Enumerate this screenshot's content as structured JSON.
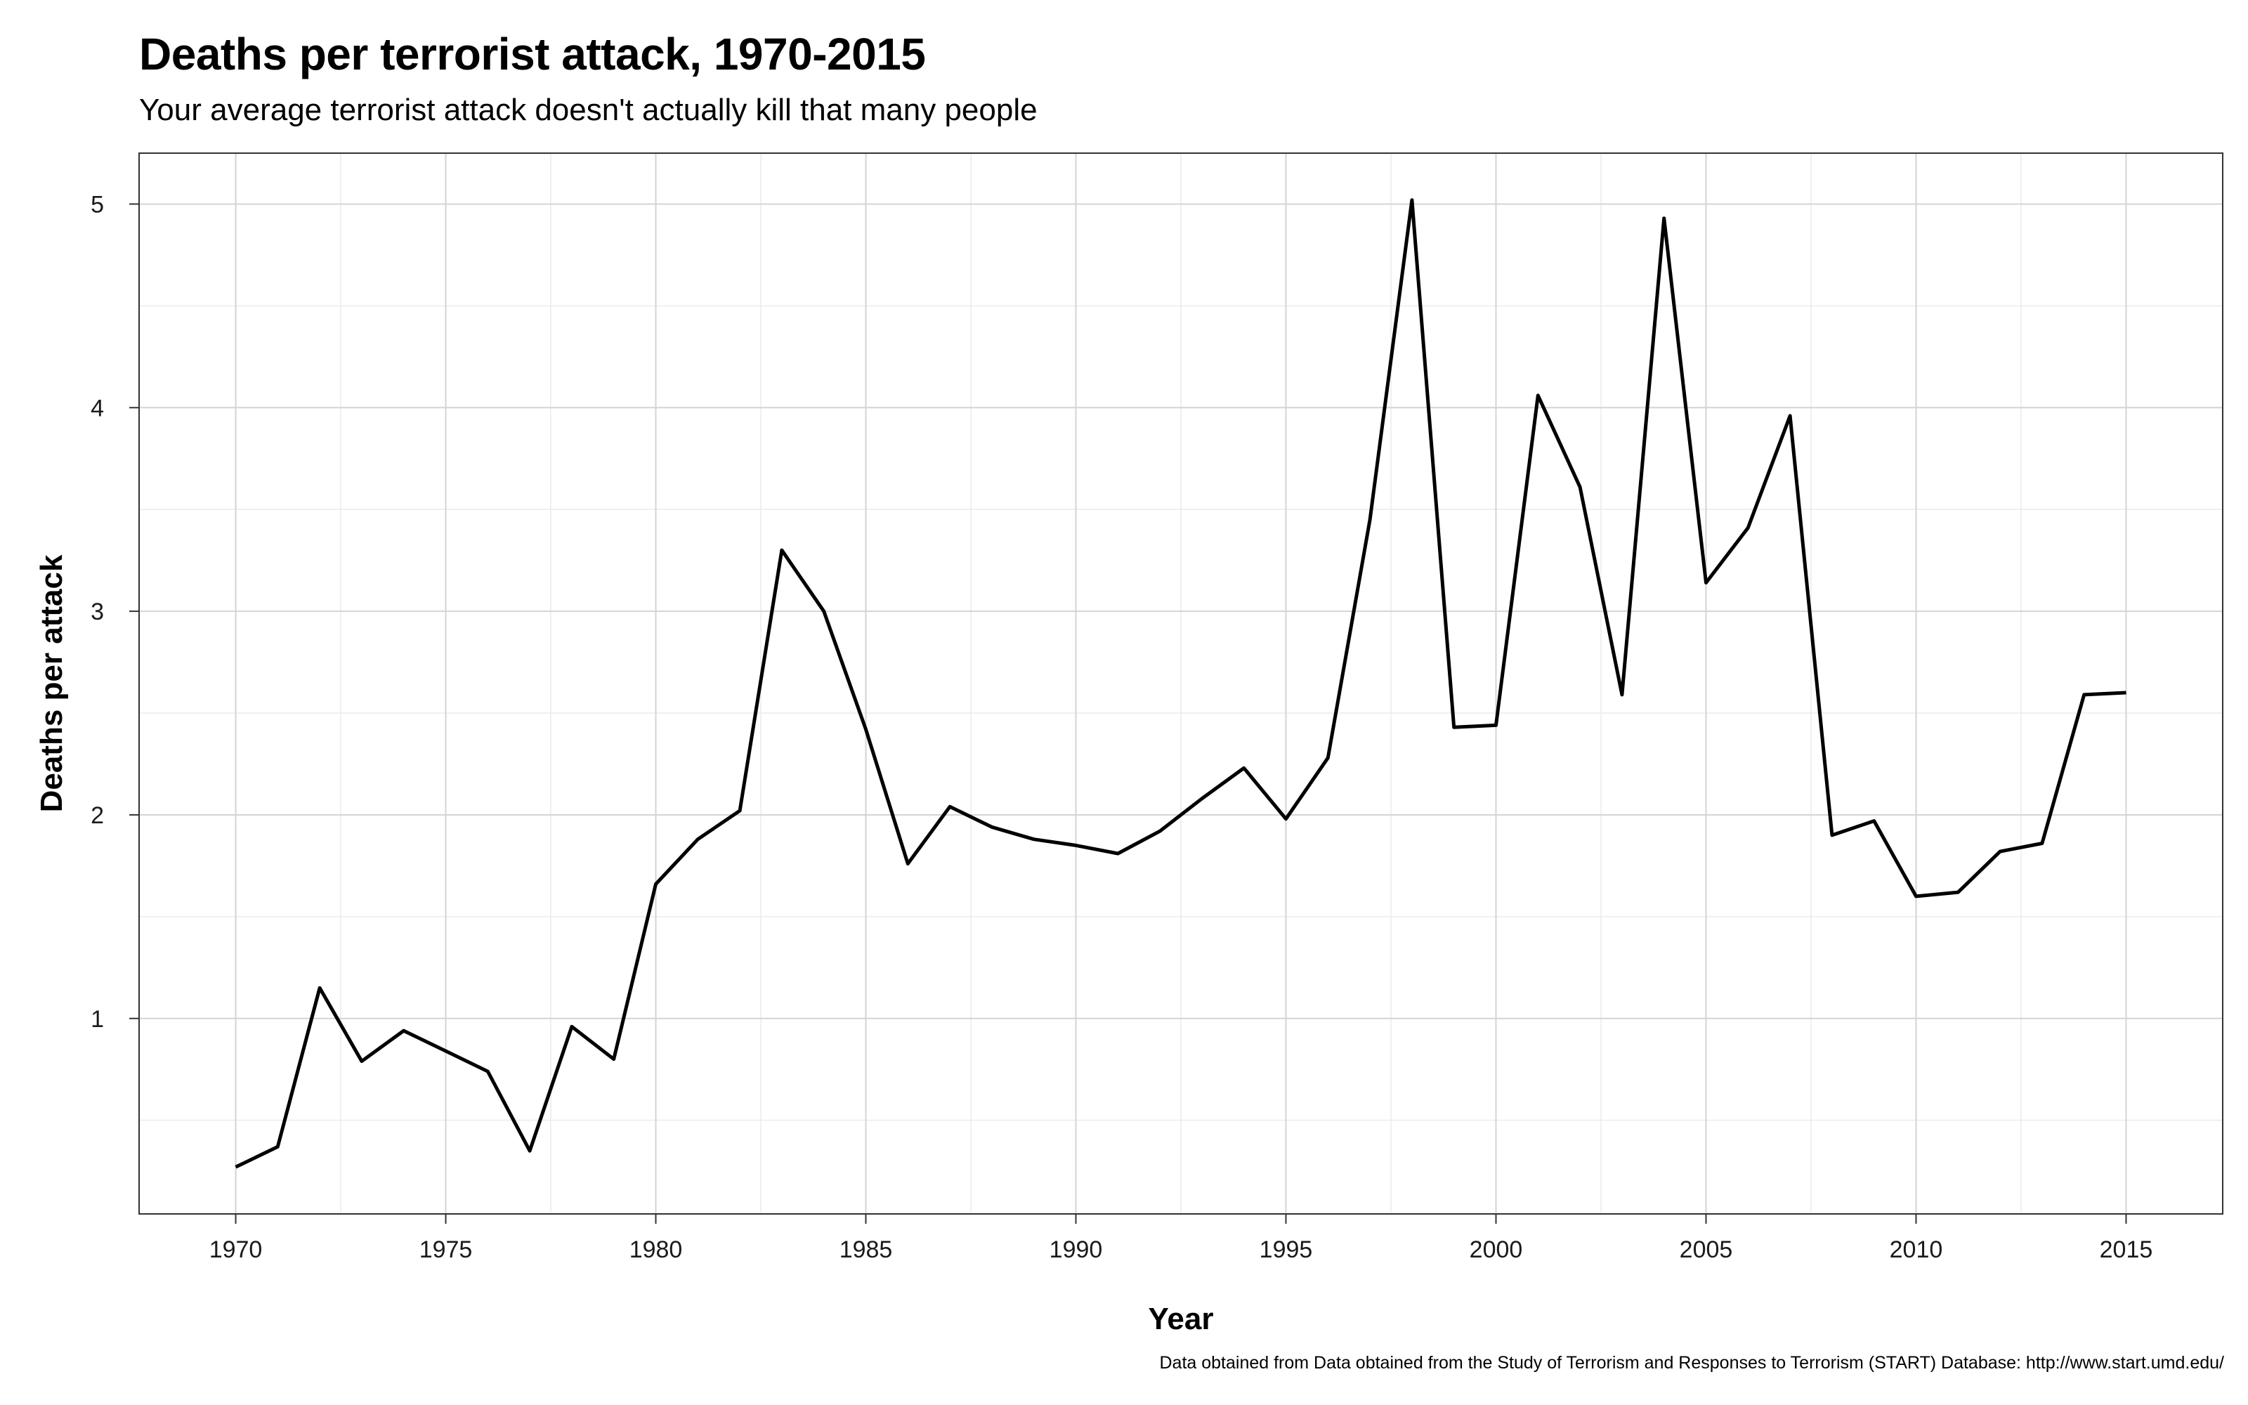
{
  "header": {
    "title": "Deaths per terrorist attack, 1970-2015",
    "subtitle": "Your average terrorist attack doesn't actually kill that many people"
  },
  "footer": {
    "caption": "Data obtained from Data obtained from the Study of Terrorism and Responses to Terrorism (START) Database: http://www.start.umd.edu/"
  },
  "chart_data": {
    "type": "line",
    "title": "Deaths per terrorist attack, 1970-2015",
    "subtitle": "Your average terrorist attack doesn't actually kill that many people",
    "xlabel": "Year",
    "ylabel": "Deaths per attack",
    "xlim": [
      1967.7,
      2017.3
    ],
    "ylim": [
      0.04,
      5.25
    ],
    "xticks": [
      1970,
      1975,
      1980,
      1985,
      1990,
      1995,
      2000,
      2005,
      2010,
      2015
    ],
    "yticks": [
      1,
      2,
      3,
      4,
      5
    ],
    "grid": true,
    "line_color": "#000000",
    "x": [
      1970,
      1971,
      1972,
      1973,
      1974,
      1975,
      1976,
      1977,
      1978,
      1979,
      1980,
      1981,
      1982,
      1983,
      1984,
      1985,
      1986,
      1987,
      1988,
      1989,
      1990,
      1991,
      1992,
      1993,
      1994,
      1995,
      1996,
      1997,
      1998,
      1999,
      2000,
      2001,
      2002,
      2003,
      2004,
      2005,
      2006,
      2007,
      2008,
      2009,
      2010,
      2011,
      2012,
      2013,
      2014,
      2015
    ],
    "y": [
      0.27,
      0.37,
      1.15,
      0.79,
      0.94,
      0.84,
      0.74,
      0.35,
      0.96,
      0.8,
      1.66,
      1.88,
      2.02,
      3.3,
      3.0,
      2.42,
      1.76,
      2.04,
      1.94,
      1.88,
      1.85,
      1.81,
      1.92,
      2.08,
      2.23,
      1.98,
      2.28,
      3.45,
      5.02,
      2.43,
      2.44,
      4.06,
      3.61,
      2.59,
      4.93,
      3.14,
      3.41,
      3.96,
      1.9,
      1.97,
      1.6,
      1.62,
      1.82,
      1.86,
      2.59,
      2.6
    ]
  }
}
